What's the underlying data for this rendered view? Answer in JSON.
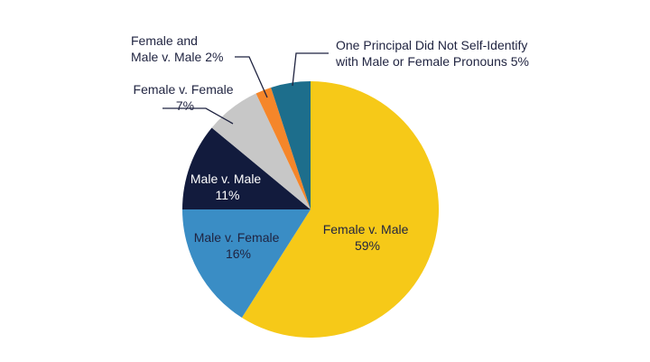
{
  "chart_data": {
    "type": "pie",
    "title": "",
    "slices": [
      {
        "label_lines": [
          "Female v. Male",
          "59%"
        ],
        "name": "Female v. Male",
        "value": 59,
        "color": "#f6c918"
      },
      {
        "label_lines": [
          "Male v. Female",
          "16%"
        ],
        "name": "Male v. Female",
        "value": 16,
        "color": "#3a8dc5"
      },
      {
        "label_lines": [
          "Male v. Male",
          "11%"
        ],
        "name": "Male v. Male",
        "value": 11,
        "color": "#121b3d"
      },
      {
        "label_lines": [
          "Female v. Female",
          "7%"
        ],
        "name": "Female v. Female",
        "value": 7,
        "color": "#c7c7c7"
      },
      {
        "label_lines": [
          "Female and",
          "Male v. Male 2%"
        ],
        "name": "Female and Male v. Male",
        "value": 2,
        "color": "#f5862a"
      },
      {
        "label_lines": [
          "One Principal Did Not Self-Identify",
          "with Male or Female Pronouns 5%"
        ],
        "name": "One Principal Did Not Self-Identify with Male or Female Pronouns",
        "value": 5,
        "color": "#1d6e8c"
      }
    ]
  }
}
